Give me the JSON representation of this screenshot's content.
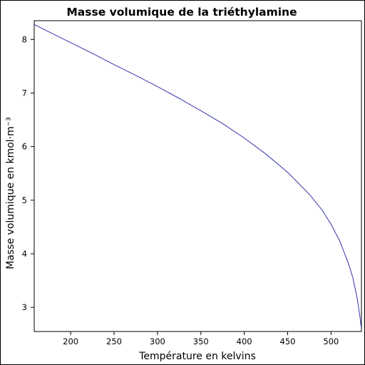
{
  "chart_data": {
    "type": "line",
    "title": "Masse volumique de la triéthylamine",
    "xlabel": "Température en kelvins",
    "ylabel": "Masse volumique en kmol·m⁻³",
    "xlim": [
      158,
      535
    ],
    "ylim": [
      2.55,
      8.35
    ],
    "x_ticks": [
      200,
      250,
      300,
      350,
      400,
      450,
      500
    ],
    "y_ticks": [
      3,
      4,
      5,
      6,
      7,
      8
    ],
    "grid": false,
    "series": [
      {
        "color": "#3333aa",
        "points": [
          [
            158,
            8.28
          ],
          [
            180,
            8.1
          ],
          [
            200,
            7.94
          ],
          [
            225,
            7.74
          ],
          [
            250,
            7.53
          ],
          [
            275,
            7.33
          ],
          [
            300,
            7.12
          ],
          [
            325,
            6.9
          ],
          [
            350,
            6.67
          ],
          [
            375,
            6.43
          ],
          [
            400,
            6.16
          ],
          [
            425,
            5.86
          ],
          [
            450,
            5.52
          ],
          [
            475,
            5.11
          ],
          [
            490,
            4.81
          ],
          [
            500,
            4.55
          ],
          [
            510,
            4.24
          ],
          [
            520,
            3.82
          ],
          [
            525,
            3.56
          ],
          [
            530,
            3.18
          ],
          [
            533,
            2.86
          ],
          [
            535,
            2.6
          ]
        ]
      }
    ]
  }
}
